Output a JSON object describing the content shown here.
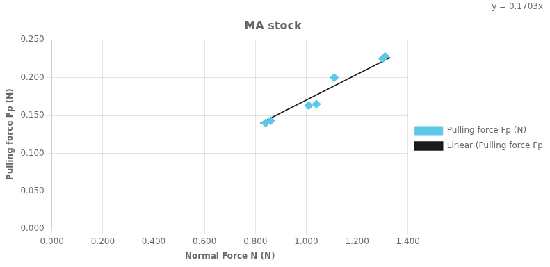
{
  "chart_data": {
    "type": "scatter",
    "title": "MA stock",
    "xlabel": "Normal Force N (N)",
    "ylabel": "Pulling force Fp (N)",
    "annotations": [
      "y = 0.1703x"
    ],
    "series": [
      {
        "name": "Pulling force Fp (N)",
        "color": "#5BC8E8",
        "marker": "diamond",
        "x": [
          0.84,
          0.86,
          1.01,
          1.04,
          1.11,
          1.3,
          1.31
        ],
        "values": [
          0.14,
          0.143,
          0.163,
          0.165,
          0.2,
          0.225,
          0.228
        ]
      },
      {
        "name": "Linear (Pulling force Fp (N))",
        "type": "line",
        "color": "#1a1a1a",
        "line_style": "solid",
        "x": [
          0.82,
          1.33
        ],
        "values": [
          0.139646,
          0.226499
        ]
      }
    ],
    "xlim": [
      0.0,
      1.4
    ],
    "ylim": [
      0.0,
      0.25
    ],
    "xticks": [
      {
        "value": 0.0,
        "label": "0.000"
      },
      {
        "value": 0.2,
        "label": "0.200"
      },
      {
        "value": 0.4,
        "label": "0.400"
      },
      {
        "value": 0.6,
        "label": "0.600"
      },
      {
        "value": 0.8,
        "label": "0.800"
      },
      {
        "value": 1.0,
        "label": "1.000"
      },
      {
        "value": 1.2,
        "label": "1.200"
      },
      {
        "value": 1.4,
        "label": "1.400"
      }
    ],
    "yticks": [
      {
        "value": 0.0,
        "label": "0.000"
      },
      {
        "value": 0.05,
        "label": "0.050"
      },
      {
        "value": 0.1,
        "label": "0.100"
      },
      {
        "value": 0.15,
        "label": "0.150"
      },
      {
        "value": 0.2,
        "label": "0.200"
      },
      {
        "value": 0.25,
        "label": "0.250"
      }
    ],
    "grid": true,
    "legend": "right"
  }
}
